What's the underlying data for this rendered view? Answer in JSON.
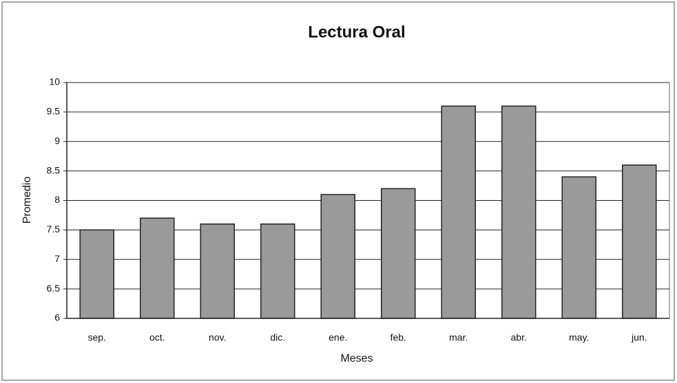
{
  "chart_data": {
    "type": "bar",
    "title": "Lectura Oral",
    "x_label": "Meses",
    "y_label": "Promedio",
    "categories": [
      "sep.",
      "oct.",
      "nov.",
      "dic.",
      "ene.",
      "feb.",
      "mar.",
      "abr.",
      "may.",
      "jun."
    ],
    "values": [
      7.5,
      7.7,
      7.6,
      7.6,
      8.1,
      8.2,
      9.6,
      9.6,
      8.4,
      8.6
    ],
    "color": "#9a9a9a",
    "ylim": [
      6,
      10
    ],
    "yticks": [
      6,
      6.5,
      7,
      7.5,
      8,
      8.5,
      9,
      9.5,
      10
    ],
    "grid": true
  }
}
